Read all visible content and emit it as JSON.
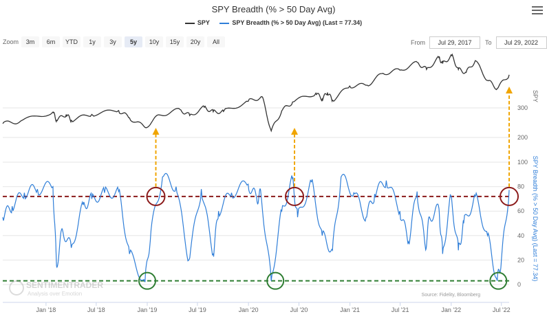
{
  "title": "SPY Breadth (% > 50 Day Avg)",
  "legend": [
    {
      "name": "SPY",
      "color": "#333333"
    },
    {
      "name": "SPY Breadth (% > 50 Day Avg) (Last = 77.34)",
      "color": "#2f7ed8"
    }
  ],
  "zoom": {
    "label": "Zoom",
    "buttons": [
      "3m",
      "6m",
      "YTD",
      "1y",
      "3y",
      "5y",
      "10y",
      "15y",
      "20y",
      "All"
    ],
    "active": "5y"
  },
  "range": {
    "from_label": "From",
    "from_value": "Jul 29, 2017",
    "to_label": "To",
    "to_value": "Jul 29, 2022"
  },
  "watermark": {
    "brand": "SENTIMENTRADER",
    "tagline": "Analysis over Emotion"
  },
  "source": "Source: Fidelity, Bloomberg",
  "chart_data": {
    "type": "line",
    "x_tick_labels": [
      "Jan '18",
      "Jul '18",
      "Jan '19",
      "Jul '19",
      "Jan '20",
      "Jul '20",
      "Jan '21",
      "Jul '21",
      "Jan '22",
      "Jul '22"
    ],
    "series": [
      {
        "name": "SPY",
        "axis": "right-top",
        "color": "#333333",
        "x": [
          "2017-07-29",
          "2017-10-01",
          "2018-01-26",
          "2018-02-08",
          "2018-03-15",
          "2018-04-02",
          "2018-06-15",
          "2018-09-20",
          "2018-10-29",
          "2018-12-24",
          "2019-02-15",
          "2019-04-30",
          "2019-06-03",
          "2019-07-26",
          "2019-08-27",
          "2019-10-03",
          "2019-12-31",
          "2020-02-19",
          "2020-03-23",
          "2020-04-30",
          "2020-06-08",
          "2020-08-31",
          "2020-09-23",
          "2020-10-12",
          "2020-10-30",
          "2020-12-31",
          "2021-03-04",
          "2021-04-30",
          "2021-06-30",
          "2021-09-02",
          "2021-10-04",
          "2021-11-18",
          "2021-12-01",
          "2022-01-03",
          "2022-01-27",
          "2022-02-24",
          "2022-03-29",
          "2022-05-12",
          "2022-06-16",
          "2022-07-29"
        ],
        "y": [
          247,
          255,
          286,
          258,
          278,
          258,
          278,
          291,
          266,
          234,
          276,
          294,
          274,
          302,
          287,
          288,
          322,
          338,
          222,
          290,
          320,
          350,
          330,
          352,
          326,
          374,
          377,
          417,
          428,
          453,
          430,
          470,
          450,
          477,
          430,
          420,
          460,
          393,
          366,
          412
        ]
      },
      {
        "name": "SPY Breadth (% > 50 Day Avg) (Last = 77.34)",
        "axis": "right-bottom",
        "color": "#2f7ed8",
        "x": [
          "2017-07-29",
          "2017-09-01",
          "2017-10-15",
          "2017-12-01",
          "2018-01-26",
          "2018-02-08",
          "2018-03-01",
          "2018-04-02",
          "2018-05-15",
          "2018-06-15",
          "2018-07-31",
          "2018-09-20",
          "2018-10-29",
          "2018-12-24",
          "2019-01-15",
          "2019-02-25",
          "2019-04-15",
          "2019-05-31",
          "2019-07-15",
          "2019-08-27",
          "2019-09-15",
          "2019-11-01",
          "2019-12-31",
          "2020-01-31",
          "2020-02-15",
          "2020-03-23",
          "2020-04-30",
          "2020-06-08",
          "2020-06-26",
          "2020-08-15",
          "2020-09-23",
          "2020-10-30",
          "2020-11-30",
          "2021-01-15",
          "2021-02-28",
          "2021-03-31",
          "2021-05-12",
          "2021-06-30",
          "2021-07-31",
          "2021-08-31",
          "2021-09-30",
          "2021-10-15",
          "2021-11-18",
          "2021-12-01",
          "2021-12-31",
          "2022-01-27",
          "2022-02-15",
          "2022-03-29",
          "2022-05-12",
          "2022-06-16",
          "2022-07-01",
          "2022-07-29"
        ],
        "y": [
          55,
          64,
          75,
          78,
          80,
          15,
          45,
          30,
          65,
          70,
          75,
          76,
          25,
          2,
          45,
          88,
          80,
          20,
          78,
          25,
          60,
          75,
          82,
          70,
          74,
          3,
          60,
          86,
          55,
          84,
          40,
          28,
          88,
          75,
          55,
          74,
          85,
          60,
          35,
          76,
          30,
          55,
          62,
          25,
          72,
          28,
          50,
          72,
          40,
          3,
          20,
          77.34
        ]
      }
    ],
    "y_axis_top": {
      "ticks": [
        200,
        300
      ],
      "label": "SPY"
    },
    "y_axis_bottom": {
      "ticks": [
        0,
        20,
        40,
        60,
        80,
        100
      ],
      "label": "SPY Breadth (% > 50 Day Avg) (Last = 77.34)"
    },
    "reference_lines": [
      {
        "axis": "right-bottom",
        "value": 72,
        "color": "#8b1a1a",
        "style": "dashed"
      },
      {
        "axis": "right-bottom",
        "value": 3,
        "color": "#2e7d32",
        "style": "dashed"
      }
    ],
    "highlight_dates": [
      "2019-02-01",
      "2020-06-15",
      "2022-07-29"
    ],
    "bottom_circle_dates": [
      "2019-01-01",
      "2020-04-07",
      "2022-06-20"
    ],
    "colors": {
      "up_arrow": "#f0a500",
      "top_circle": "#8b1a1a",
      "bottom_circle": "#2e7d32"
    }
  }
}
